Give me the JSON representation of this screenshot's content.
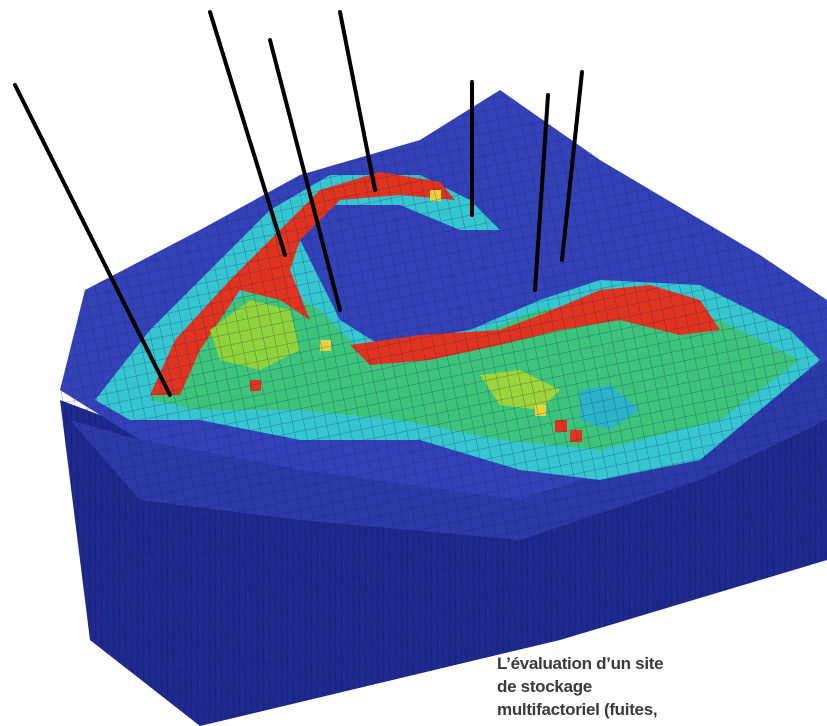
{
  "caption": {
    "lines": [
      "L’évaluation d’un site",
      "de stockage",
      "multifactoriel (fuites,"
    ]
  }
}
